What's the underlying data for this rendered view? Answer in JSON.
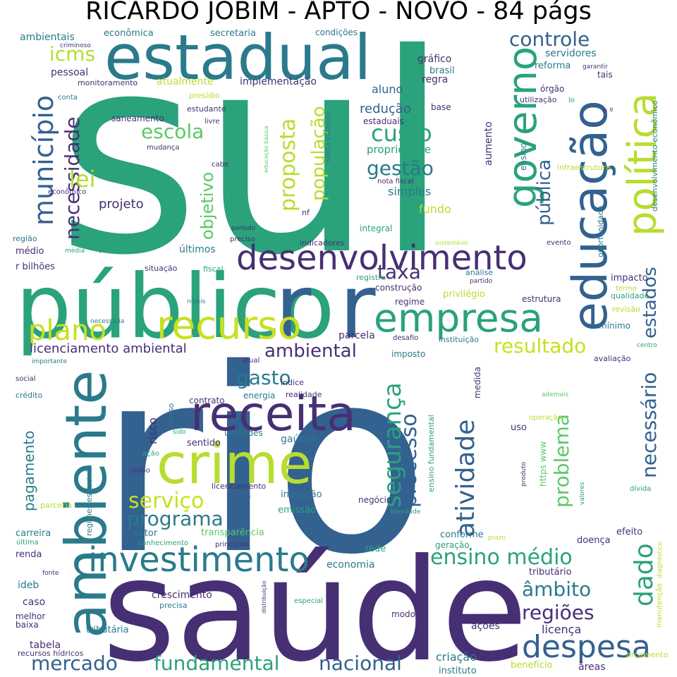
{
  "title": "RICARDO JOBIM - APTO - NOVO - 84 págs",
  "colors": {
    "navy": "#3b2e6b",
    "blue": "#336190",
    "teal": "#2a7a8c",
    "green": "#2aa27b",
    "lime": "#b6dd2f",
    "mint": "#5cc867"
  },
  "words": [
    {
      "text": "sul",
      "c": "#2aa27b"
    },
    {
      "text": "rio",
      "c": "#336190"
    },
    {
      "text": "saúde",
      "c": "#472f74"
    },
    {
      "text": "público",
      "c": "#2aa27b"
    },
    {
      "text": "r r",
      "c": "#336190"
    },
    {
      "text": "estadual",
      "c": "#2a7a8c"
    },
    {
      "text": "ambiente",
      "c": "#2a7a8c"
    },
    {
      "text": "educação",
      "c": "#336190"
    },
    {
      "text": "política",
      "c": "#b6dd2f"
    },
    {
      "text": "governo",
      "c": "#2aa27b"
    },
    {
      "text": "crime",
      "c": "#b6dd2f"
    },
    {
      "text": "receita",
      "c": "#472f74"
    },
    {
      "text": "recurso",
      "c": "#c8e020"
    },
    {
      "text": "empresa",
      "c": "#2aa27b"
    },
    {
      "text": "desenvolvimento",
      "c": "#472f74"
    },
    {
      "text": "investimento",
      "c": "#2a7a8c"
    },
    {
      "text": "despesa",
      "c": "#336190"
    },
    {
      "text": "plano",
      "c": "#c8e020"
    },
    {
      "text": "r",
      "c": "#336190"
    },
    {
      "text": "município",
      "c": "#336190"
    },
    {
      "text": "necessidade",
      "c": "#472f74"
    },
    {
      "text": "controle",
      "c": "#336190"
    },
    {
      "text": "lei",
      "c": "#b6dd2f"
    },
    {
      "text": "escola",
      "c": "#5cc867"
    },
    {
      "text": "custo",
      "c": "#2aa27b"
    },
    {
      "text": "gestão",
      "c": "#2a7a8c"
    },
    {
      "text": "proposta",
      "c": "#b6dd2f"
    },
    {
      "text": "população",
      "c": "#b6dd2f"
    },
    {
      "text": "objetivo",
      "c": "#5cc867"
    },
    {
      "text": "pública",
      "c": "#336190"
    },
    {
      "text": "icms",
      "c": "#b6dd2f"
    },
    {
      "text": "segurança",
      "c": "#2aa27b"
    },
    {
      "text": "atividade",
      "c": "#336190"
    },
    {
      "text": "processo",
      "c": "#336190"
    },
    {
      "text": "problema",
      "c": "#5cc867"
    },
    {
      "text": "necessário",
      "c": "#336190"
    },
    {
      "text": "dado",
      "c": "#2aa27b"
    },
    {
      "text": "estados",
      "c": "#336190"
    },
    {
      "text": "resultado",
      "c": "#c8e020"
    },
    {
      "text": "taxa",
      "c": "#472f74"
    },
    {
      "text": "ambiental",
      "c": "#472f74"
    },
    {
      "text": "licenciamento ambiental",
      "c": "#472f74"
    },
    {
      "text": "gasto",
      "c": "#2a7a8c"
    },
    {
      "text": "serviço",
      "c": "#c8e020"
    },
    {
      "text": "programa",
      "c": "#2a7a8c"
    },
    {
      "text": "ensino médio",
      "c": "#2aa27b"
    },
    {
      "text": "âmbito",
      "c": "#2a7a8c"
    },
    {
      "text": "regiões",
      "c": "#472f74"
    },
    {
      "text": "mercado",
      "c": "#336190"
    },
    {
      "text": "fundamental",
      "c": "#2aa27b"
    },
    {
      "text": "nacional",
      "c": "#336190"
    },
    {
      "text": "pagamento",
      "c": "#2a7a8c"
    },
    {
      "text": "projeto",
      "c": "#472f74"
    },
    {
      "text": "simples",
      "c": "#2a7a8c"
    },
    {
      "text": "fundo",
      "c": "#b6dd2f"
    },
    {
      "text": "redução",
      "c": "#336190"
    },
    {
      "text": "propriedade",
      "c": "#2aa27b"
    },
    {
      "text": "aluno",
      "c": "#336190"
    },
    {
      "text": "regra",
      "c": "#472f74"
    },
    {
      "text": "gráfico",
      "c": "#472f74"
    },
    {
      "text": "brasil",
      "c": "#2a7a8c"
    },
    {
      "text": "implementação",
      "c": "#472f74"
    },
    {
      "text": "atualmente",
      "c": "#b6dd2f"
    },
    {
      "text": "pessoal",
      "c": "#472f74"
    },
    {
      "text": "servidores",
      "c": "#2a7a8c"
    },
    {
      "text": "reforma",
      "c": "#2a7a8c"
    },
    {
      "text": "ambientais",
      "c": "#2a7a8c"
    },
    {
      "text": "econômica",
      "c": "#2a7a8c"
    },
    {
      "text": "secretaria",
      "c": "#2a7a8c"
    },
    {
      "text": "condições",
      "c": "#2a7a8c"
    },
    {
      "text": "monitoramento",
      "c": "#472f74"
    },
    {
      "text": "saneamento",
      "c": "#472f74"
    },
    {
      "text": "estudante",
      "c": "#472f74"
    },
    {
      "text": "estaduais",
      "c": "#472f74"
    },
    {
      "text": "santa catarina",
      "c": "#2a7a8c"
    },
    {
      "text": "educação básica",
      "c": "#5cc867"
    },
    {
      "text": "nota fiscal",
      "c": "#472f74"
    },
    {
      "text": "nf",
      "c": "#472f74"
    },
    {
      "text": "integral",
      "c": "#2aa27b"
    },
    {
      "text": "indicadores",
      "c": "#472f74"
    },
    {
      "text": "período",
      "c": "#472f74"
    },
    {
      "text": "preciso",
      "c": "#472f74"
    },
    {
      "text": "prática",
      "c": "#2aa27b"
    },
    {
      "text": "últimos",
      "c": "#2a7a8c"
    },
    {
      "text": "situação",
      "c": "#472f74"
    },
    {
      "text": "fiscal",
      "c": "#2aa27b"
    },
    {
      "text": "r bilhões",
      "c": "#472f74"
    },
    {
      "text": "região",
      "c": "#2a7a8c"
    },
    {
      "text": "médio",
      "c": "#472f74"
    },
    {
      "text": "média",
      "c": "#2aa27b"
    },
    {
      "text": "registro",
      "c": "#2aa27b"
    },
    {
      "text": "construção",
      "c": "#472f74"
    },
    {
      "text": "regime",
      "c": "#472f74"
    },
    {
      "text": "privilégio",
      "c": "#b6dd2f"
    },
    {
      "text": "parcela",
      "c": "#472f74"
    },
    {
      "text": "desafio",
      "c": "#472f74"
    },
    {
      "text": "instituição",
      "c": "#2a7a8c"
    },
    {
      "text": "imposto",
      "c": "#2a7a8c"
    },
    {
      "text": "índice",
      "c": "#472f74"
    },
    {
      "text": "realidade",
      "c": "#472f74"
    },
    {
      "text": "energia",
      "c": "#2a7a8c"
    },
    {
      "text": "contrato",
      "c": "#472f74"
    },
    {
      "text": "unidades",
      "c": "#2a7a8c"
    },
    {
      "text": "sentido",
      "c": "#472f74"
    },
    {
      "text": "gaúcho",
      "c": "#2a7a8c"
    },
    {
      "text": "inovação",
      "c": "#2a7a8c"
    },
    {
      "text": "emissão",
      "c": "#2aa27b"
    },
    {
      "text": "negócio",
      "c": "#472f74"
    },
    {
      "text": "liberdade",
      "c": "#2aa27b"
    },
    {
      "text": "transparência",
      "c": "#5cc867"
    },
    {
      "text": "principais",
      "c": "#472f74"
    },
    {
      "text": "setor",
      "c": "#2a7a8c"
    },
    {
      "text": "conhecimento",
      "c": "#2aa27b"
    },
    {
      "text": "economia",
      "c": "#2a7a8c"
    },
    {
      "text": "rede",
      "c": "#2aa27b"
    },
    {
      "text": "crescimento",
      "c": "#472f74"
    },
    {
      "text": "precisa",
      "c": "#2a7a8c"
    },
    {
      "text": "especial",
      "c": "#2aa27b"
    },
    {
      "text": "modo",
      "c": "#472f74"
    },
    {
      "text": "tributária",
      "c": "#2a7a8c"
    },
    {
      "text": "ações",
      "c": "#472f74"
    },
    {
      "text": "tabela",
      "c": "#472f74"
    },
    {
      "text": "recursos hídricos",
      "c": "#472f74"
    },
    {
      "text": "criação",
      "c": "#2a7a8c"
    },
    {
      "text": "instituto",
      "c": "#2a7a8c"
    },
    {
      "text": "benefício",
      "c": "#b6dd2f"
    },
    {
      "text": "áreas",
      "c": "#472f74"
    },
    {
      "text": "licença",
      "c": "#472f74"
    },
    {
      "text": "tributário",
      "c": "#472f74"
    },
    {
      "text": "doença",
      "c": "#472f74"
    },
    {
      "text": "efeito",
      "c": "#472f74"
    },
    {
      "text": "conforme",
      "c": "#2a7a8c"
    },
    {
      "text": "geração",
      "c": "#2aa27b"
    },
    {
      "text": "orçamento",
      "c": "#b6dd2f"
    },
    {
      "text": "manutenção",
      "c": "#b6dd2f"
    },
    {
      "text": "diagnóstico",
      "c": "#b6dd2f"
    },
    {
      "text": "impacto",
      "c": "#472f74"
    },
    {
      "text": "qualidade",
      "c": "#2aa27b"
    },
    {
      "text": "revisão",
      "c": "#b6dd2f"
    },
    {
      "text": "mínimo",
      "c": "#2a7a8c"
    },
    {
      "text": "termo",
      "c": "#b6dd2f"
    },
    {
      "text": "centro",
      "c": "#2aa27b"
    },
    {
      "text": "avaliação",
      "c": "#472f74"
    },
    {
      "text": "estrutura",
      "c": "#472f74"
    },
    {
      "text": "análise",
      "c": "#2a7a8c"
    },
    {
      "text": "partido",
      "c": "#472f74"
    },
    {
      "text": "evento",
      "c": "#472f74"
    },
    {
      "text": "oportunidade",
      "c": "#2a7a8c"
    },
    {
      "text": "sustentável",
      "c": "#b6dd2f"
    },
    {
      "text": "infraestrutura",
      "c": "#b6dd2f"
    },
    {
      "text": "desenvolvimento econômico",
      "c": "#2a7a8c"
    },
    {
      "text": "órgão",
      "c": "#472f74"
    },
    {
      "text": "utilização",
      "c": "#472f74"
    },
    {
      "text": "tais",
      "c": "#472f74"
    },
    {
      "text": "garantir",
      "c": "#472f74"
    },
    {
      "text": "lo",
      "c": "#2aa27b"
    },
    {
      "text": "n º",
      "c": "#472f74"
    },
    {
      "text": "base",
      "c": "#472f74"
    },
    {
      "text": "ensino",
      "c": "#2a7a8c"
    },
    {
      "text": "aumento",
      "c": "#472f74"
    },
    {
      "text": "ensino fundamental",
      "c": "#2aa27b"
    },
    {
      "text": "medida",
      "c": "#472f74"
    },
    {
      "text": "https www",
      "c": "#5cc867"
    },
    {
      "text": "produto",
      "c": "#472f74"
    },
    {
      "text": "valores",
      "c": "#2aa27b"
    },
    {
      "text": "dívida",
      "c": "#2aa27b"
    },
    {
      "text": "ademais",
      "c": "#5cc867"
    },
    {
      "text": "operação",
      "c": "#b6dd2f"
    },
    {
      "text": "uso",
      "c": "#472f74"
    },
    {
      "text": "prazo",
      "c": "#b6dd2f"
    },
    {
      "text": "distribuição",
      "c": "#472f74"
    },
    {
      "text": "risco",
      "c": "#472f74"
    },
    {
      "text": "disso",
      "c": "#2a7a8c"
    },
    {
      "text": "sido",
      "c": "#2aa27b"
    },
    {
      "text": "ação",
      "c": "#2aa27b"
    },
    {
      "text": "união",
      "c": "#472f74"
    },
    {
      "text": "licenciamento",
      "c": "#472f74"
    },
    {
      "text": "regimes especiais",
      "c": "#2a7a8c"
    },
    {
      "text": "parceria",
      "c": "#b6dd2f"
    },
    {
      "text": "carreira",
      "c": "#2a7a8c"
    },
    {
      "text": "última",
      "c": "#2aa27b"
    },
    {
      "text": "renda",
      "c": "#472f74"
    },
    {
      "text": "fonte",
      "c": "#472f74"
    },
    {
      "text": "ideb",
      "c": "#2a7a8c"
    },
    {
      "text": "caso",
      "c": "#472f74"
    },
    {
      "text": "melhor",
      "c": "#472f74"
    },
    {
      "text": "baixa",
      "c": "#472f74"
    },
    {
      "text": "social",
      "c": "#472f74"
    },
    {
      "text": "crédito",
      "c": "#2a7a8c"
    },
    {
      "text": "importante",
      "c": "#2a7a8c"
    },
    {
      "text": "atual",
      "c": "#472f74"
    },
    {
      "text": "necessária",
      "c": "#2a7a8c"
    },
    {
      "text": "níveis",
      "c": "#2a7a8c"
    },
    {
      "text": "criminoso",
      "c": "#472f74"
    },
    {
      "text": "conta",
      "c": "#2a7a8c"
    },
    {
      "text": "presídio",
      "c": "#b6dd2f"
    },
    {
      "text": "livre",
      "c": "#472f74"
    },
    {
      "text": "mudança",
      "c": "#472f74"
    },
    {
      "text": "cabe",
      "c": "#472f74"
    },
    {
      "text": "econômico",
      "c": "#472f74"
    }
  ]
}
